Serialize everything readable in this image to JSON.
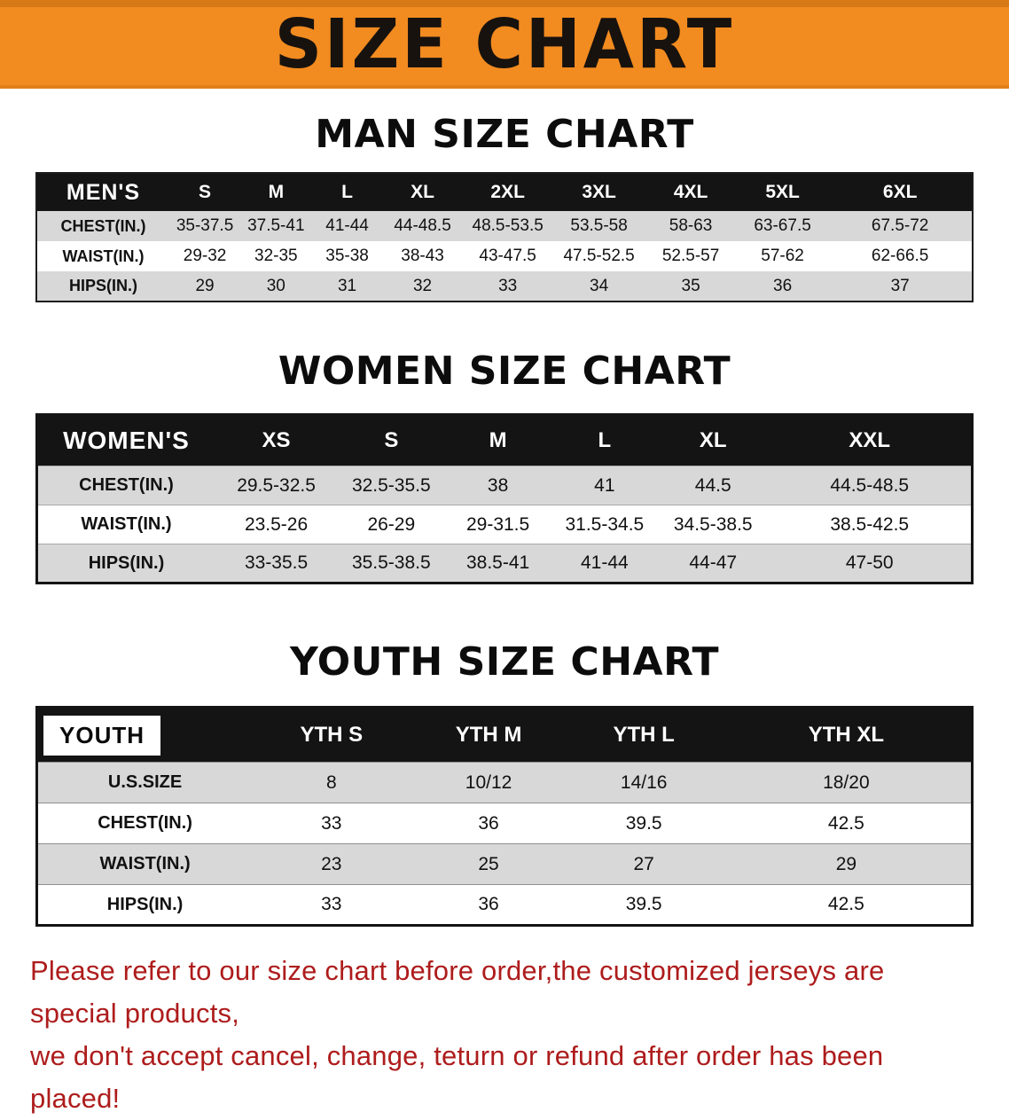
{
  "banner": {
    "title": "SIZE CHART"
  },
  "colors": {
    "banner_bg": "#f28b20",
    "banner_text": "#17120e",
    "header_bg": "#141414",
    "header_text": "#ffffff",
    "row_shade": "#d8d8d8",
    "notice_color": "#ae1c1c"
  },
  "sections": [
    {
      "id": "men",
      "title": "MAN SIZE CHART",
      "header": [
        "MEN'S",
        "S",
        "M",
        "L",
        "XL",
        "2XL",
        "3XL",
        "4XL",
        "5XL",
        "6XL"
      ],
      "rows": [
        {
          "label": "CHEST(IN.)",
          "values": [
            "35-37.5",
            "37.5-41",
            "41-44",
            "44-48.5",
            "48.5-53.5",
            "53.5-58",
            "58-63",
            "63-67.5",
            "67.5-72"
          ]
        },
        {
          "label": "WAIST(IN.)",
          "values": [
            "29-32",
            "32-35",
            "35-38",
            "38-43",
            "43-47.5",
            "47.5-52.5",
            "52.5-57",
            "57-62",
            "62-66.5"
          ]
        },
        {
          "label": "HIPS(IN.)",
          "values": [
            "29",
            "30",
            "31",
            "32",
            "33",
            "34",
            "35",
            "36",
            "37"
          ]
        }
      ]
    },
    {
      "id": "women",
      "title": "WOMEN SIZE CHART",
      "header": [
        "WOMEN'S",
        "XS",
        "S",
        "M",
        "L",
        "XL",
        "XXL"
      ],
      "rows": [
        {
          "label": "CHEST(IN.)",
          "values": [
            "29.5-32.5",
            "32.5-35.5",
            "38",
            "41",
            "44.5",
            "44.5-48.5"
          ]
        },
        {
          "label": "WAIST(IN.)",
          "values": [
            "23.5-26",
            "26-29",
            "29-31.5",
            "31.5-34.5",
            "34.5-38.5",
            "38.5-42.5"
          ]
        },
        {
          "label": "HIPS(IN.)",
          "values": [
            "33-35.5",
            "35.5-38.5",
            "38.5-41",
            "41-44",
            "44-47",
            "47-50"
          ]
        }
      ]
    },
    {
      "id": "youth",
      "title": "YOUTH SIZE CHART",
      "header": [
        "YOUTH",
        "YTH S",
        "YTH M",
        "YTH L",
        "YTH XL"
      ],
      "rows": [
        {
          "label": "U.S.SIZE",
          "values": [
            "8",
            "10/12",
            "14/16",
            "18/20"
          ]
        },
        {
          "label": "CHEST(IN.)",
          "values": [
            "33",
            "36",
            "39.5",
            "42.5"
          ]
        },
        {
          "label": "WAIST(IN.)",
          "values": [
            "23",
            "25",
            "27",
            "29"
          ]
        },
        {
          "label": "HIPS(IN.)",
          "values": [
            "33",
            "36",
            "39.5",
            "42.5"
          ]
        }
      ]
    }
  ],
  "footer": {
    "line1": "Please refer to our size chart before order,the customized jerseys are special products,",
    "line2": "we don't accept cancel, change, teturn or refund after order has been placed!"
  }
}
